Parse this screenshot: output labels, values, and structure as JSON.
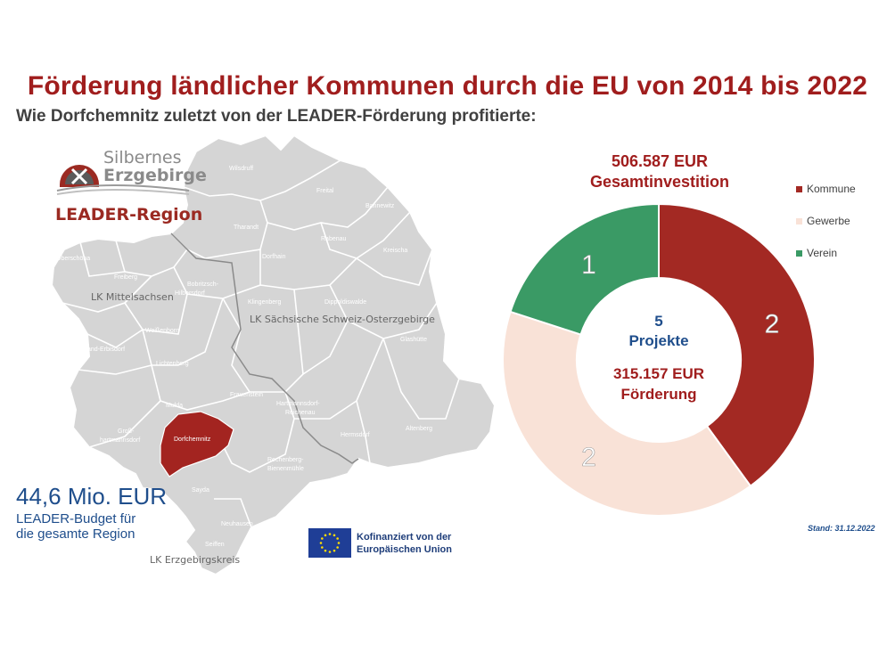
{
  "header": {
    "title": "Förderung ländlicher Kommunen durch die EU von 2014 bis 2022",
    "subtitle": "Wie Dorfchemnitz zuletzt von der LEADER-Förderung profitierte:"
  },
  "logo": {
    "line1": "Silbernes",
    "line2": "Erzgebirge",
    "line3": "LEADER-Region"
  },
  "map": {
    "districts": [
      "LK Mittelsachsen",
      "LK Sächsische Schweiz-Osterzgebirge",
      "LK Erzgebirgskreis"
    ],
    "municipalities": {
      "wilsdruff": "Wilsdruff",
      "freital": "Freital",
      "bannewitz": "Bannewitz",
      "tharandt": "Tharandt",
      "rabenau": "Rabenau",
      "kreischa": "Kreischa",
      "oberschoena": "Oberschöna",
      "freiberg": "Freiberg",
      "bobritzsch_1": "Bobritzsch-",
      "bobritzsch_2": "Hilbersdorf",
      "dorfhain": "Dorfhain",
      "klingenberg": "Klingenberg",
      "dippoldiswalde": "Dippoldiswalde",
      "weissenborn": "Weißenborn",
      "glashuette": "Glashütte",
      "brand_erbisdorf": "Brand-Erbisdorf",
      "lichtenberg": "Lichtenberg",
      "frauenstein": "Frauenstein",
      "mulda": "Mulda",
      "hartmannsdorf_1": "Hartmannsdorf-",
      "hartmannsdorf_2": "Reichenau",
      "gross_1": "Groß-",
      "gross_2": "hartmannsdorf",
      "dorfchemnitz": "Dorfchemnitz",
      "hermsdorf": "Hermsdorf",
      "altenberg": "Altenberg",
      "rechenberg_1": "Rechenberg-",
      "rechenberg_2": "Bienenmühle",
      "sayda": "Sayda",
      "neuhausen": "Neuhausen",
      "seiffen": "Seiffen"
    },
    "highlight_color": "#a32420"
  },
  "budget": {
    "amount": "44,6 Mio. EUR",
    "line1": "LEADER-Budget für",
    "line2": "die gesamte Region"
  },
  "eu": {
    "line1": "Kofinanziert von der",
    "line2": "Europäischen Union"
  },
  "stand": "Stand: 31.12.2022",
  "chart_data": {
    "type": "pie",
    "variant": "donut",
    "top_label": {
      "line1": "506.587 EUR",
      "line2": "Gesamtinvestition"
    },
    "center": {
      "count": "5",
      "count_label": "Projekte",
      "amount": "315.157 EUR",
      "amount_label": "Förderung"
    },
    "categories": [
      "Kommune",
      "Gewerbe",
      "Verein"
    ],
    "values": [
      2,
      2,
      1
    ],
    "colors": [
      "#a32923",
      "#f9e2d7",
      "#3a9a65"
    ],
    "legend_position": "right"
  }
}
